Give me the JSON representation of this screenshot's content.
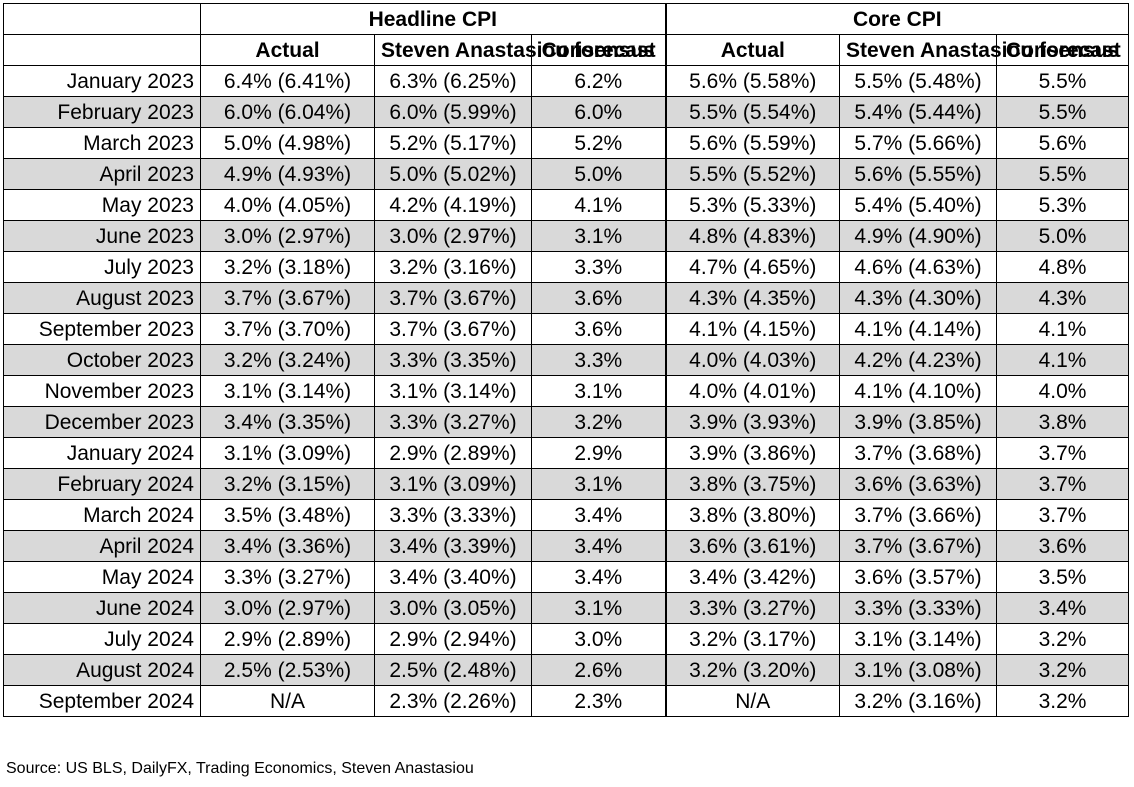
{
  "chart_data": {
    "type": "table",
    "groups": [
      "Headline CPI",
      "Core CPI"
    ],
    "columns": [
      "Actual",
      "Steven Anastasiou forecast",
      "Consensus"
    ],
    "rows": [
      {
        "month": "January 2023",
        "h_actual": "6.4% (6.41%)",
        "h_forecast": "6.3% (6.25%)",
        "h_consensus": "6.2%",
        "c_actual": "5.6% (5.58%)",
        "c_forecast": "5.5% (5.48%)",
        "c_consensus": "5.5%"
      },
      {
        "month": "February 2023",
        "h_actual": "6.0% (6.04%)",
        "h_forecast": "6.0% (5.99%)",
        "h_consensus": "6.0%",
        "c_actual": "5.5% (5.54%)",
        "c_forecast": "5.4% (5.44%)",
        "c_consensus": "5.5%"
      },
      {
        "month": "March 2023",
        "h_actual": "5.0% (4.98%)",
        "h_forecast": "5.2% (5.17%)",
        "h_consensus": "5.2%",
        "c_actual": "5.6% (5.59%)",
        "c_forecast": "5.7% (5.66%)",
        "c_consensus": "5.6%"
      },
      {
        "month": "April 2023",
        "h_actual": "4.9% (4.93%)",
        "h_forecast": "5.0% (5.02%)",
        "h_consensus": "5.0%",
        "c_actual": "5.5% (5.52%)",
        "c_forecast": "5.6% (5.55%)",
        "c_consensus": "5.5%"
      },
      {
        "month": "May 2023",
        "h_actual": "4.0% (4.05%)",
        "h_forecast": "4.2% (4.19%)",
        "h_consensus": "4.1%",
        "c_actual": "5.3% (5.33%)",
        "c_forecast": "5.4% (5.40%)",
        "c_consensus": "5.3%"
      },
      {
        "month": "June 2023",
        "h_actual": "3.0% (2.97%)",
        "h_forecast": "3.0% (2.97%)",
        "h_consensus": "3.1%",
        "c_actual": "4.8% (4.83%)",
        "c_forecast": "4.9% (4.90%)",
        "c_consensus": "5.0%"
      },
      {
        "month": "July 2023",
        "h_actual": "3.2% (3.18%)",
        "h_forecast": "3.2% (3.16%)",
        "h_consensus": "3.3%",
        "c_actual": "4.7% (4.65%)",
        "c_forecast": "4.6% (4.63%)",
        "c_consensus": "4.8%"
      },
      {
        "month": "August 2023",
        "h_actual": "3.7% (3.67%)",
        "h_forecast": "3.7% (3.67%)",
        "h_consensus": "3.6%",
        "c_actual": "4.3% (4.35%)",
        "c_forecast": "4.3% (4.30%)",
        "c_consensus": "4.3%"
      },
      {
        "month": "September 2023",
        "h_actual": "3.7% (3.70%)",
        "h_forecast": "3.7% (3.67%)",
        "h_consensus": "3.6%",
        "c_actual": "4.1% (4.15%)",
        "c_forecast": "4.1% (4.14%)",
        "c_consensus": "4.1%"
      },
      {
        "month": "October 2023",
        "h_actual": "3.2% (3.24%)",
        "h_forecast": "3.3% (3.35%)",
        "h_consensus": "3.3%",
        "c_actual": "4.0% (4.03%)",
        "c_forecast": "4.2% (4.23%)",
        "c_consensus": "4.1%"
      },
      {
        "month": "November 2023",
        "h_actual": "3.1% (3.14%)",
        "h_forecast": "3.1% (3.14%)",
        "h_consensus": "3.1%",
        "c_actual": "4.0% (4.01%)",
        "c_forecast": "4.1% (4.10%)",
        "c_consensus": "4.0%"
      },
      {
        "month": "December 2023",
        "h_actual": "3.4% (3.35%)",
        "h_forecast": "3.3% (3.27%)",
        "h_consensus": "3.2%",
        "c_actual": "3.9% (3.93%)",
        "c_forecast": "3.9% (3.85%)",
        "c_consensus": "3.8%"
      },
      {
        "month": "January 2024",
        "h_actual": "3.1% (3.09%)",
        "h_forecast": "2.9% (2.89%)",
        "h_consensus": "2.9%",
        "c_actual": "3.9% (3.86%)",
        "c_forecast": "3.7% (3.68%)",
        "c_consensus": "3.7%"
      },
      {
        "month": "February 2024",
        "h_actual": "3.2% (3.15%)",
        "h_forecast": "3.1% (3.09%)",
        "h_consensus": "3.1%",
        "c_actual": "3.8% (3.75%)",
        "c_forecast": "3.6% (3.63%)",
        "c_consensus": "3.7%"
      },
      {
        "month": "March 2024",
        "h_actual": "3.5% (3.48%)",
        "h_forecast": "3.3% (3.33%)",
        "h_consensus": "3.4%",
        "c_actual": "3.8% (3.80%)",
        "c_forecast": "3.7% (3.66%)",
        "c_consensus": "3.7%"
      },
      {
        "month": "April 2024",
        "h_actual": "3.4% (3.36%)",
        "h_forecast": "3.4% (3.39%)",
        "h_consensus": "3.4%",
        "c_actual": "3.6% (3.61%)",
        "c_forecast": "3.7% (3.67%)",
        "c_consensus": "3.6%"
      },
      {
        "month": "May 2024",
        "h_actual": "3.3% (3.27%)",
        "h_forecast": "3.4% (3.40%)",
        "h_consensus": "3.4%",
        "c_actual": "3.4% (3.42%)",
        "c_forecast": "3.6% (3.57%)",
        "c_consensus": "3.5%"
      },
      {
        "month": "June 2024",
        "h_actual": "3.0% (2.97%)",
        "h_forecast": "3.0% (3.05%)",
        "h_consensus": "3.1%",
        "c_actual": "3.3% (3.27%)",
        "c_forecast": "3.3% (3.33%)",
        "c_consensus": "3.4%"
      },
      {
        "month": "July 2024",
        "h_actual": "2.9% (2.89%)",
        "h_forecast": "2.9% (2.94%)",
        "h_consensus": "3.0%",
        "c_actual": "3.2% (3.17%)",
        "c_forecast": "3.1% (3.14%)",
        "c_consensus": "3.2%"
      },
      {
        "month": "August 2024",
        "h_actual": "2.5% (2.53%)",
        "h_forecast": "2.5% (2.48%)",
        "h_consensus": "2.6%",
        "c_actual": "3.2% (3.20%)",
        "c_forecast": "3.1% (3.08%)",
        "c_consensus": "3.2%"
      },
      {
        "month": "September 2024",
        "h_actual": "N/A",
        "h_forecast": "2.3% (2.26%)",
        "h_consensus": "2.3%",
        "c_actual": "N/A",
        "c_forecast": "3.2% (3.16%)",
        "c_consensus": "3.2%"
      }
    ],
    "shading": "alternate rows grey (#d9d9d9)"
  },
  "source": "Source: US BLS, DailyFX, Trading Economics, Steven Anastasiou"
}
